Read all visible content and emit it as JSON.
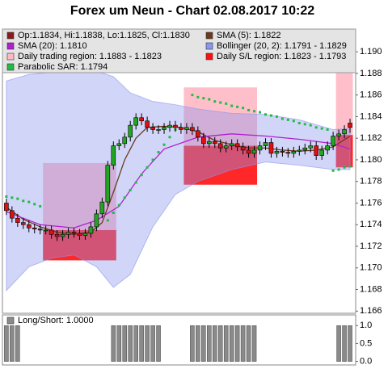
{
  "title": "Forex um Neun - Chart 02.08.2017 10:22",
  "chart_data": [
    {
      "type": "candlestick",
      "xlim": [
        -0.7,
        62
      ],
      "ylim": [
        1.1658,
        1.1921
      ],
      "yticks": [
        1.166,
        1.168,
        {
          "value": 1.17,
          "label": "1.170"
        },
        1.172,
        1.174,
        1.176,
        1.178,
        {
          "value": 1.18,
          "label": "1.180"
        },
        1.182,
        1.184,
        1.186,
        1.188,
        {
          "value": 1.19,
          "label": "1.190"
        }
      ],
      "series": [
        {
          "kind": "ohlc",
          "name": "Op:1.1834, Hi:1.1838, Lo:1.1825, Cl:1.1830",
          "color": "#8b1a1a",
          "up_color": "#22a522",
          "down_color": "#e01010",
          "open": [
            1.176,
            1.1753,
            1.1746,
            1.1742,
            1.174,
            1.1737,
            1.1736,
            1.1735,
            1.1735,
            1.1731,
            1.1729,
            1.1731,
            1.1733,
            1.1732,
            1.173,
            1.1732,
            1.1738,
            1.175,
            1.1761,
            1.1795,
            1.1813,
            1.1815,
            1.1821,
            1.1832,
            1.1839,
            1.1836,
            1.183,
            1.1828,
            1.1828,
            1.183,
            1.1832,
            1.183,
            1.1828,
            1.183,
            1.1827,
            1.1821,
            1.1815,
            1.1817,
            1.1815,
            1.1811,
            1.1813,
            1.1815,
            1.1812,
            1.1809,
            1.1806,
            1.1809,
            1.1813,
            1.1816,
            1.1806,
            1.1808,
            1.1807,
            1.1806,
            1.1808,
            1.1809,
            1.1811,
            1.1813,
            1.1804,
            1.1809,
            1.1813,
            1.1822,
            1.1824,
            1.1834
          ],
          "high": [
            1.1764,
            1.1757,
            1.175,
            1.1746,
            1.1744,
            1.1741,
            1.174,
            1.1739,
            1.1739,
            1.1735,
            1.1735,
            1.1737,
            1.1737,
            1.1736,
            1.1736,
            1.1742,
            1.1754,
            1.1765,
            1.1799,
            1.1817,
            1.1819,
            1.1825,
            1.1836,
            1.1843,
            1.1843,
            1.184,
            1.1834,
            1.1832,
            1.1834,
            1.1836,
            1.1836,
            1.1834,
            1.1834,
            1.1834,
            1.1831,
            1.1825,
            1.1821,
            1.1821,
            1.1819,
            1.1817,
            1.1819,
            1.1819,
            1.1816,
            1.1813,
            1.1813,
            1.1817,
            1.182,
            1.182,
            1.1812,
            1.1812,
            1.1811,
            1.1812,
            1.1813,
            1.1815,
            1.1817,
            1.1817,
            1.1813,
            1.1817,
            1.1826,
            1.1828,
            1.1832,
            1.1838
          ],
          "low": [
            1.1749,
            1.1742,
            1.1738,
            1.1736,
            1.1733,
            1.1732,
            1.1731,
            1.1731,
            1.1727,
            1.1725,
            1.1725,
            1.1727,
            1.1728,
            1.1726,
            1.1726,
            1.1728,
            1.1734,
            1.1746,
            1.1757,
            1.1791,
            1.1809,
            1.1811,
            1.1817,
            1.1828,
            1.1832,
            1.1826,
            1.1824,
            1.1824,
            1.1824,
            1.1826,
            1.1826,
            1.1824,
            1.1824,
            1.1823,
            1.1817,
            1.1811,
            1.1811,
            1.1811,
            1.1807,
            1.1807,
            1.1809,
            1.1808,
            1.1805,
            1.1802,
            1.1802,
            1.1805,
            1.1809,
            1.1802,
            1.1802,
            1.1803,
            1.1802,
            1.1802,
            1.1804,
            1.1805,
            1.1807,
            1.18,
            1.18,
            1.1805,
            1.1809,
            1.1818,
            1.182,
            1.1825
          ],
          "close": [
            1.1753,
            1.1746,
            1.1742,
            1.174,
            1.1737,
            1.1736,
            1.1735,
            1.1735,
            1.1731,
            1.1729,
            1.1731,
            1.1733,
            1.1732,
            1.173,
            1.1732,
            1.1738,
            1.175,
            1.1761,
            1.1795,
            1.1813,
            1.1815,
            1.1821,
            1.1832,
            1.1839,
            1.1836,
            1.183,
            1.1828,
            1.1828,
            1.183,
            1.1832,
            1.183,
            1.1828,
            1.183,
            1.1827,
            1.1821,
            1.1815,
            1.1817,
            1.1815,
            1.1811,
            1.1813,
            1.1815,
            1.1812,
            1.1809,
            1.1806,
            1.1809,
            1.1813,
            1.1816,
            1.1806,
            1.1808,
            1.1807,
            1.1806,
            1.1808,
            1.1809,
            1.1811,
            1.1813,
            1.1804,
            1.1809,
            1.1813,
            1.1822,
            1.1824,
            1.1828,
            1.183
          ]
        },
        {
          "kind": "line",
          "name": "SMA (5): 1.1822",
          "color": "#6b3a1e",
          "x": [
            0,
            3,
            6,
            9,
            12,
            15,
            17,
            19,
            21,
            23,
            25,
            28,
            31,
            34,
            37,
            40,
            43,
            46,
            49,
            52,
            55,
            58,
            61
          ],
          "values": [
            1.1756,
            1.1745,
            1.1738,
            1.1733,
            1.1731,
            1.1733,
            1.1742,
            1.177,
            1.18,
            1.182,
            1.183,
            1.1831,
            1.183,
            1.1826,
            1.1818,
            1.1814,
            1.1811,
            1.1811,
            1.1809,
            1.1808,
            1.1809,
            1.1812,
            1.1822
          ]
        },
        {
          "kind": "line",
          "name": "SMA (20): 1.1810",
          "color": "#b020d0",
          "x": [
            0,
            6,
            12,
            16,
            20,
            24,
            28,
            34,
            40,
            46,
            52,
            58,
            61
          ],
          "values": [
            1.1752,
            1.174,
            1.1737,
            1.1744,
            1.1757,
            1.1787,
            1.181,
            1.1821,
            1.1824,
            1.1822,
            1.1819,
            1.1815,
            1.181
          ]
        },
        {
          "kind": "band",
          "name": "Bollinger (20, 2): 1.1791 - 1.1829",
          "color": "#8c96ee",
          "x": [
            0,
            4,
            8,
            12,
            16,
            19,
            22,
            26,
            30,
            34,
            40,
            46,
            52,
            58,
            61
          ],
          "upper": [
            1.1873,
            1.1879,
            1.1881,
            1.1882,
            1.1882,
            1.1877,
            1.1862,
            1.1854,
            1.1851,
            1.1847,
            1.1843,
            1.1842,
            1.1837,
            1.1828,
            1.1829
          ],
          "lower": [
            1.1679,
            1.1701,
            1.1709,
            1.1712,
            1.1701,
            1.1682,
            1.1694,
            1.1738,
            1.1768,
            1.178,
            1.1791,
            1.1798,
            1.1795,
            1.1791,
            1.1791
          ]
        },
        {
          "kind": "region",
          "name": "Daily trading region: 1.1883 - 1.1823",
          "color": "#ffb8c4",
          "x_ranges": [
            [
              6.5,
              19.5
            ],
            [
              31.5,
              44.5
            ],
            [
              58.5,
              61.5
            ]
          ],
          "y_ranges": [
            [
              1.1735,
              1.1797
            ],
            [
              1.1813,
              1.1867
            ],
            [
              1.1823,
              1.1883
            ]
          ]
        },
        {
          "kind": "region",
          "name": "Daily S/L region: 1.1823 - 1.1793",
          "color": "#ff1010",
          "x_ranges": [
            [
              6.5,
              19.5
            ],
            [
              31.5,
              44.5
            ],
            [
              58.5,
              61.5
            ]
          ],
          "y_ranges": [
            [
              1.1707,
              1.1735
            ],
            [
              1.1777,
              1.1813
            ],
            [
              1.1793,
              1.1823
            ]
          ]
        },
        {
          "kind": "dots",
          "name": "Parabolic SAR: 1.1794",
          "color": "#22bb44",
          "x": [
            0,
            1,
            2,
            3,
            4,
            5,
            6,
            18,
            19,
            20,
            21,
            22,
            23,
            24,
            25,
            26,
            27,
            28,
            29,
            30,
            33,
            34,
            35,
            36,
            37,
            38,
            39,
            40,
            41,
            42,
            43,
            44,
            45,
            46,
            47,
            48,
            49,
            50,
            51,
            52,
            53,
            54,
            55,
            56,
            57,
            58,
            59,
            60,
            61
          ],
          "values": [
            1.1766,
            1.1765,
            1.1764,
            1.1762,
            1.1761,
            1.1759,
            1.1757,
            1.1744,
            1.1751,
            1.1758,
            1.1765,
            1.1772,
            1.1779,
            1.1786,
            1.1793,
            1.18,
            1.1807,
            1.1814,
            1.1821,
            1.1828,
            1.186,
            1.1858,
            1.1857,
            1.1856,
            1.1854,
            1.1853,
            1.1852,
            1.185,
            1.1849,
            1.1848,
            1.1846,
            1.1845,
            1.1844,
            1.1842,
            1.1841,
            1.184,
            1.1838,
            1.1837,
            1.1836,
            1.1834,
            1.1833,
            1.1832,
            1.183,
            1.1829,
            1.1828,
            1.179,
            1.1791,
            1.1793,
            1.1794
          ]
        }
      ]
    },
    {
      "type": "bar",
      "title": "Long/Short: 1.0000",
      "color": "#8a8a8a",
      "xlim": [
        -0.7,
        62
      ],
      "ylim": [
        -0.1,
        1.3
      ],
      "yticks": [
        {
          "value": 1,
          "label": "1.0"
        },
        0.5,
        {
          "value": 0,
          "label": "0.0"
        }
      ],
      "values": [
        1,
        1,
        1,
        0,
        0,
        0,
        0,
        0,
        0,
        0,
        0,
        0,
        0,
        0,
        0,
        0,
        0,
        0,
        0,
        1,
        1,
        1,
        1,
        1,
        1,
        1,
        1,
        1,
        0,
        0,
        0,
        0,
        0,
        1,
        1,
        1,
        1,
        1,
        1,
        1,
        1,
        1,
        1,
        1,
        1,
        0,
        0,
        0,
        0,
        0,
        0,
        0,
        0,
        0,
        0,
        0,
        0,
        0,
        0,
        1,
        1,
        1
      ]
    }
  ]
}
